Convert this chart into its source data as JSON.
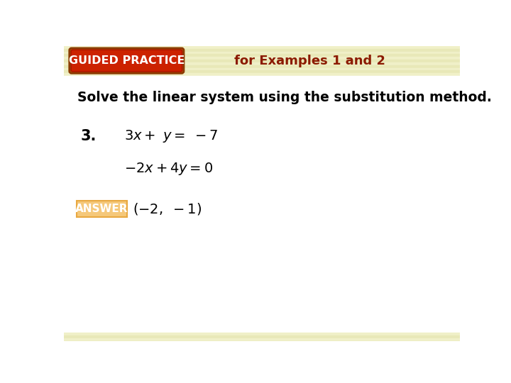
{
  "bg_color": "#ffffff",
  "header_bg": "#f5f5d0",
  "header_stripe_light": "#f0f0c8",
  "header_stripe_dark": "#e8e8b8",
  "footer_bg": "#f5f5d0",
  "guided_practice_bg": "#cc2200",
  "guided_practice_border": "#8b1a00",
  "guided_practice_text": "GUIDED PRACTICE",
  "guided_practice_text_color": "#ffffff",
  "for_examples_text": "for Examples 1 and 2",
  "for_examples_color": "#8b1a00",
  "instruction_text": "Solve the linear system using the substitution method.",
  "instruction_color": "#000000",
  "number_text": "3.",
  "answer_label": "ANSWER",
  "answer_label_bg": "#f5c87a",
  "answer_label_color": "#ffffff",
  "answer_label_border": "#e8a840"
}
